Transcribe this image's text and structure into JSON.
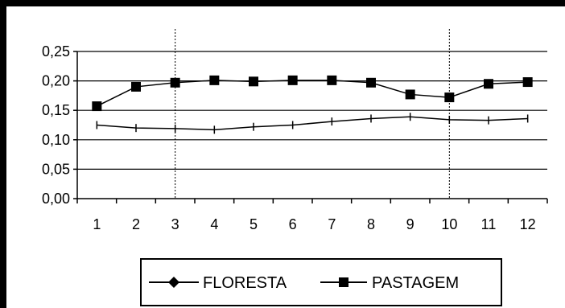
{
  "chart_data": {
    "type": "line",
    "title": "",
    "xlabel": "",
    "ylabel": "",
    "x": [
      1,
      2,
      3,
      4,
      5,
      6,
      7,
      8,
      9,
      10,
      11,
      12
    ],
    "x_tick_labels": [
      "1",
      "2",
      "3",
      "4",
      "5",
      "6",
      "7",
      "8",
      "9",
      "10",
      "11",
      "12"
    ],
    "ylim": [
      0,
      0.25
    ],
    "y_ticks": [
      0.0,
      0.05,
      0.1,
      0.15,
      0.2,
      0.25
    ],
    "y_tick_labels": [
      "0,00",
      "0,05",
      "0,10",
      "0,15",
      "0,20",
      "0,25"
    ],
    "grid": "horizontal",
    "vertical_reference_lines_at_x": [
      2.5,
      9.5
    ],
    "legend_position": "bottom",
    "series": [
      {
        "name": "FLORESTA",
        "marker": "diamond",
        "color": "#000000",
        "values": [
          0.125,
          0.12,
          0.119,
          0.117,
          0.122,
          0.125,
          0.131,
          0.136,
          0.139,
          0.134,
          0.133,
          0.136
        ]
      },
      {
        "name": "PASTAGEM",
        "marker": "square",
        "color": "#000000",
        "values": [
          0.157,
          0.19,
          0.197,
          0.201,
          0.199,
          0.201,
          0.201,
          0.197,
          0.177,
          0.172,
          0.195,
          0.198
        ]
      }
    ]
  }
}
